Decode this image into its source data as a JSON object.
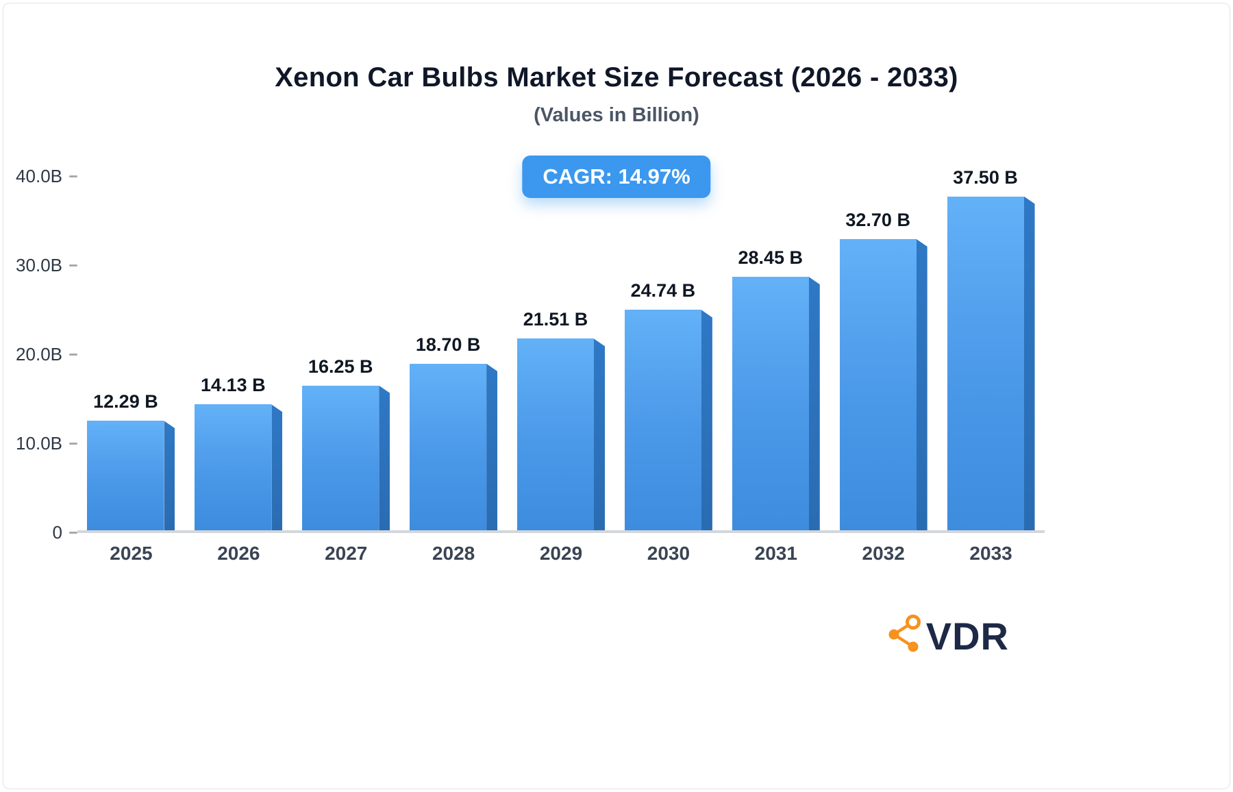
{
  "title": "Xenon Car Bulbs Market Size Forecast (2026 - 2033)",
  "subtitle": "(Values in Billion)",
  "badge": {
    "label": "CAGR: 14.97%"
  },
  "logo": {
    "text": "VDR",
    "icon": "share-network-icon",
    "icon_color": "#f6921e",
    "text_color": "#1e2947"
  },
  "chart_data": {
    "type": "bar",
    "title": "Xenon Car Bulbs Market Size Forecast (2026 - 2033)",
    "subtitle": "(Values in Billion)",
    "annotation": "CAGR: 14.97%",
    "categories": [
      "2025",
      "2026",
      "2027",
      "2028",
      "2029",
      "2030",
      "2031",
      "2032",
      "2033"
    ],
    "values": [
      12.29,
      14.13,
      16.25,
      18.7,
      21.51,
      24.74,
      28.45,
      32.7,
      37.5
    ],
    "value_labels": [
      "12.29 B",
      "14.13 B",
      "16.25 B",
      "18.70 B",
      "21.51 B",
      "24.74 B",
      "28.45 B",
      "32.70 B",
      "37.50 B"
    ],
    "xlabel": "",
    "ylabel": "",
    "ylim": [
      0,
      40
    ],
    "yticks": [
      {
        "value": 0,
        "label": "0"
      },
      {
        "value": 10,
        "label": "10.0B"
      },
      {
        "value": 20,
        "label": "20.0B"
      },
      {
        "value": 30,
        "label": "30.0B"
      },
      {
        "value": 40,
        "label": "40.0B"
      }
    ],
    "grid": "off",
    "legend": "none",
    "bar_color_top": "#63b1f7",
    "bar_color_bottom": "#3e8cde",
    "bar_side_color": "#2d74c0",
    "accent_color": "#3b98ee"
  }
}
